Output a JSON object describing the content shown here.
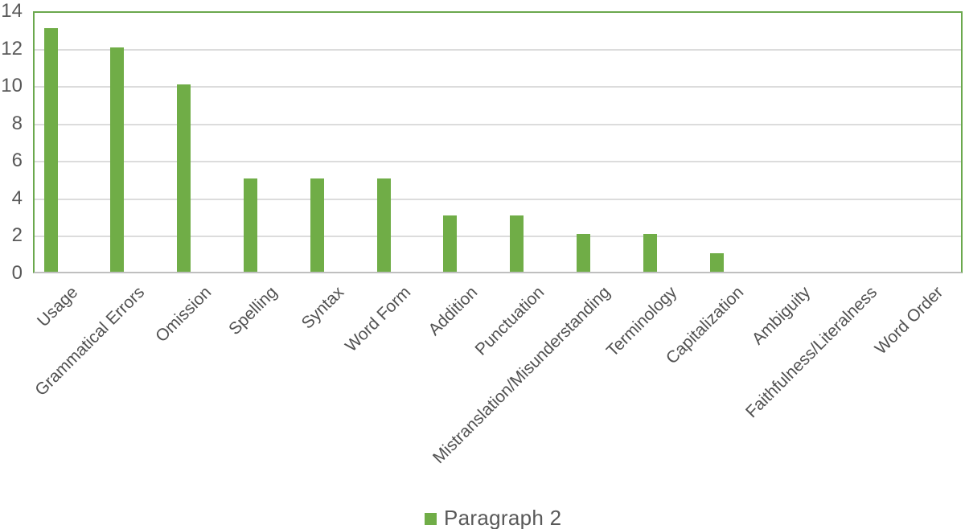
{
  "chart_data": {
    "type": "bar",
    "title": "",
    "xlabel": "",
    "ylabel": "",
    "categories": [
      "Usage",
      "Grammatical Errors",
      "Omission",
      "Spelling",
      "Syntax",
      "Word Form",
      "Addition",
      "Punctuation",
      "Mistranslation/Misunderstanding",
      "Terminology",
      "Capitalization",
      "Ambiguity",
      "Faithfulness/Literalness",
      "Word Order"
    ],
    "series": [
      {
        "name": "Paragraph 2",
        "values": [
          13,
          12,
          10,
          5,
          5,
          5,
          3,
          3,
          2,
          2,
          1,
          0,
          0,
          0
        ]
      }
    ],
    "ylim": [
      0,
      14
    ],
    "yticks": [
      0,
      2,
      4,
      6,
      8,
      10,
      12,
      14
    ],
    "grid": true,
    "legend": {
      "label": "Paragraph 2",
      "position": "bottom-center"
    },
    "colors": {
      "bar": "#70AD47",
      "plot_border": "#6BA84D",
      "gridline": "#DCDCDC",
      "axis_line": "#BFBFBF",
      "tick_text": "#595959",
      "label_text": "#515151",
      "legend_text": "#595959",
      "background": "#FFFFFF"
    }
  }
}
